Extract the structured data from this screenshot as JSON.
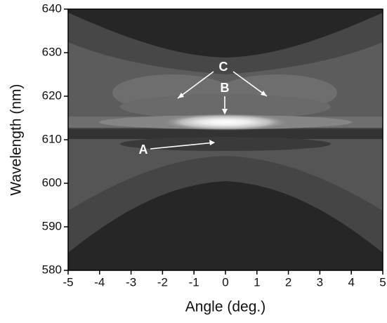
{
  "chart_data": {
    "type": "contour",
    "x_label": "Angle (deg.)",
    "y_label": "Wavelength (nm)",
    "xlim": [
      -5,
      5
    ],
    "xticks": [
      -5,
      -4,
      -3,
      -2,
      -1,
      0,
      1,
      2,
      3,
      4,
      5
    ],
    "ylim": [
      580,
      640
    ],
    "yticks": [
      580,
      590,
      600,
      610,
      620,
      630,
      640
    ],
    "annotations": [
      "A",
      "B",
      "C"
    ],
    "colormap": "gray"
  }
}
